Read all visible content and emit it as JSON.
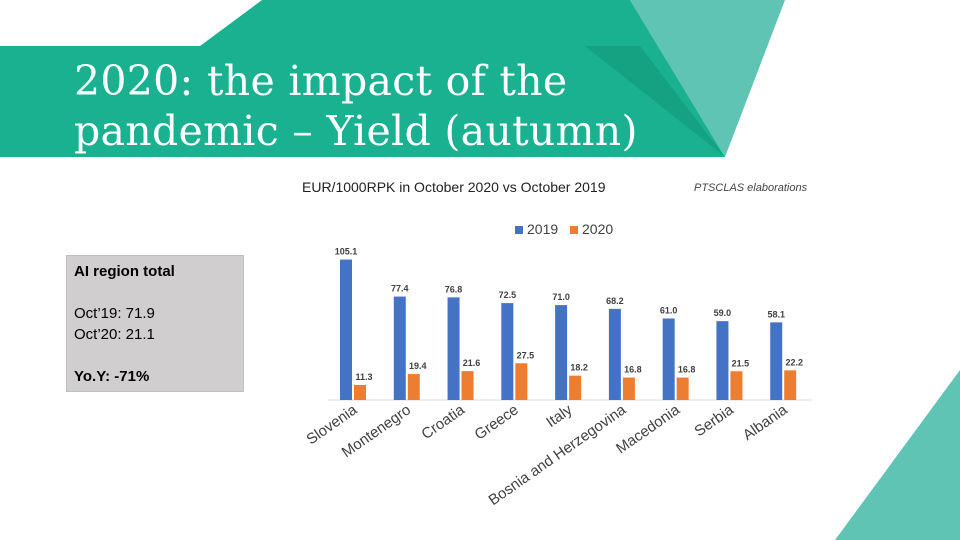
{
  "slide": {
    "title_line1": "2020: the impact of the",
    "title_line2": "pandemic – Yield (autumn)",
    "subtitle": "EUR/1000RPK in October 2020 vs October 2019",
    "credit": "PTSCLAS elaborations",
    "accent_colors": {
      "teal_dark": "#19b190",
      "teal_light": "#5fc4b3"
    }
  },
  "summary": {
    "heading": "AI region total",
    "oct19": "Oct’19:  71.9",
    "oct20": "Oct’20:  21.1",
    "yoy": "Yo.Y: -71%"
  },
  "chart_data": {
    "type": "bar",
    "title": "",
    "xlabel": "",
    "ylabel": "",
    "legend_position": "top",
    "grid": false,
    "categories": [
      "Slovenia",
      "Montenegro",
      "Croatia",
      "Greece",
      "Italy",
      "Bosnia and Herzegovina",
      "Macedonia",
      "Serbia",
      "Albania"
    ],
    "series": [
      {
        "name": "2019",
        "color": "#4472c4",
        "values": [
          105.1,
          77.4,
          76.8,
          72.5,
          71.0,
          68.2,
          61.0,
          59.0,
          58.1
        ],
        "labels": [
          "105.1",
          "77.4",
          "76.8",
          "72.5",
          "71.0",
          "68.2",
          "61.0",
          "59.0",
          "58.1"
        ]
      },
      {
        "name": "2020",
        "color": "#ed7d31",
        "values": [
          11.3,
          19.4,
          21.6,
          27.5,
          18.2,
          16.8,
          16.8,
          21.5,
          22.2
        ],
        "labels": [
          "11.3",
          "19.4",
          "21.6",
          "27.5",
          "18.2",
          "16.8",
          "16.8",
          "21.5",
          "22.2"
        ]
      }
    ],
    "ylim": [
      0,
      110
    ]
  }
}
